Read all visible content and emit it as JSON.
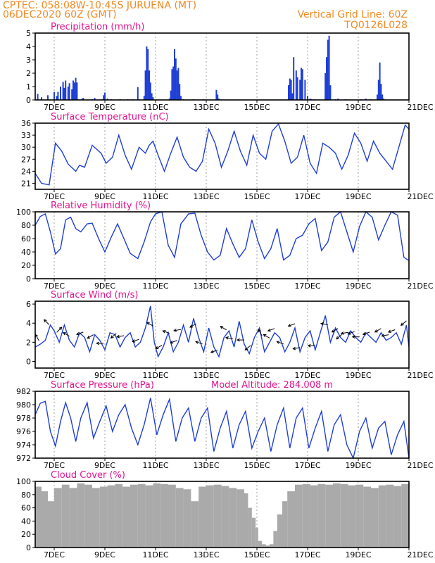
{
  "header": {
    "left_line1": "CPTEC:   058:08W-10:45S   JURUENA (MT)",
    "left_line2": "06DEC2020 60Z (GMT)",
    "right_line1": "Vertical Grid Line: 60Z",
    "right_line2": "TQ0126L028"
  },
  "colors": {
    "header": "#f08a24",
    "title": "#e0158f",
    "series": "#1f3fd6",
    "cloud": "#aaaaaa",
    "arrow": "#000000"
  },
  "x_axis": {
    "start_day": 6.25,
    "end_day": 21,
    "ticks": [
      {
        "day": 7,
        "label": "7DEC"
      },
      {
        "day": 9,
        "label": "9DEC"
      },
      {
        "day": 11,
        "label": "11DEC"
      },
      {
        "day": 13,
        "label": "13DEC"
      },
      {
        "day": 15,
        "label": "15DEC"
      },
      {
        "day": 17,
        "label": "17DEC"
      },
      {
        "day": 19,
        "label": "19DEC"
      },
      {
        "day": 21,
        "label": "21DEC"
      }
    ]
  },
  "chart_data": [
    {
      "type": "bar",
      "title": "Precipitation (mm/h)",
      "ylim": [
        0,
        5
      ],
      "yticks": [
        "0",
        "1",
        "2",
        "3",
        "4",
        "5"
      ],
      "x_units": "day of December 2020",
      "x": [
        6.35,
        6.5,
        6.75,
        7.0,
        7.1,
        7.15,
        7.25,
        7.35,
        7.4,
        7.45,
        7.55,
        7.6,
        7.7,
        7.75,
        7.8,
        7.85,
        7.9,
        8.1,
        8.15,
        8.5,
        8.6,
        8.9,
        8.95,
        9.0,
        9.1,
        9.25,
        9.6,
        9.9,
        10.1,
        10.3,
        10.55,
        10.6,
        10.65,
        10.7,
        10.75,
        10.8,
        10.85,
        10.9,
        11.55,
        11.6,
        11.65,
        11.7,
        11.75,
        11.8,
        11.85,
        11.9,
        11.95,
        12.0,
        12.1,
        12.5,
        12.9,
        13.4,
        13.45,
        13.5,
        16.25,
        16.3,
        16.35,
        16.4,
        16.45,
        16.55,
        16.6,
        16.7,
        16.75,
        16.8,
        16.9,
        17.0,
        17.1,
        17.15,
        17.3,
        17.7,
        17.75,
        17.8,
        17.85,
        17.9,
        18.1,
        18.2,
        18.5,
        19.1,
        19.3,
        19.5,
        19.75,
        19.8,
        19.85,
        19.9,
        19.95,
        20.0
      ],
      "values": [
        0.45,
        0.2,
        0.35,
        0.6,
        0.3,
        0.6,
        1.0,
        1.35,
        0.9,
        1.45,
        1.0,
        1.25,
        0.8,
        1.45,
        1.3,
        1.65,
        1.3,
        0.1,
        0.15,
        0.05,
        0.15,
        0.05,
        0.35,
        0.55,
        0.1,
        0.05,
        0.05,
        0.05,
        0.05,
        0.95,
        0.3,
        2.2,
        4.0,
        3.8,
        2.2,
        1.3,
        0.5,
        0.2,
        0.1,
        0.7,
        2.3,
        2.5,
        3.8,
        3.1,
        2.2,
        2.4,
        1.2,
        0.3,
        0.05,
        0.05,
        0.05,
        0.75,
        0.4,
        0.1,
        1.1,
        1.6,
        1.5,
        0.5,
        3.2,
        2.2,
        1.7,
        1.5,
        2.4,
        2.3,
        1.5,
        0.3,
        0.1,
        0.05,
        0.05,
        2.0,
        3.2,
        4.5,
        4.8,
        1.1,
        0.05,
        0.1,
        0.05,
        0.05,
        0.1,
        0.05,
        0.4,
        1.5,
        2.8,
        1.2,
        0.4,
        0.1
      ],
      "color": "#1f3fd6"
    },
    {
      "type": "line",
      "title": "Surface Temperature (nC)",
      "ylim": [
        19.5,
        36
      ],
      "yticks": [
        "21",
        "24",
        "27",
        "30",
        "33",
        "36"
      ],
      "x_units": "day of December 2020",
      "x": [
        6.25,
        6.5,
        6.8,
        7.05,
        7.3,
        7.55,
        7.85,
        8.0,
        8.2,
        8.5,
        8.85,
        9.05,
        9.3,
        9.55,
        9.8,
        10.05,
        10.35,
        10.6,
        10.75,
        10.9,
        11.1,
        11.35,
        11.6,
        11.85,
        12.1,
        12.35,
        12.6,
        12.85,
        13.1,
        13.35,
        13.6,
        13.85,
        14.1,
        14.35,
        14.6,
        14.85,
        15.1,
        15.35,
        15.6,
        15.85,
        16.1,
        16.35,
        16.6,
        16.85,
        17.1,
        17.35,
        17.6,
        17.85,
        18.1,
        18.35,
        18.6,
        18.85,
        19.1,
        19.35,
        19.6,
        19.85,
        20.1,
        20.35,
        20.6,
        20.85,
        21.0
      ],
      "values": [
        23.5,
        21.0,
        20.6,
        31.0,
        29.0,
        25.8,
        24.0,
        25.5,
        25.0,
        30.5,
        28.5,
        26.0,
        27.5,
        33.0,
        28.0,
        24.5,
        30.0,
        28.5,
        30.5,
        31.5,
        28.0,
        24.0,
        28.5,
        32.5,
        27.5,
        25.0,
        24.0,
        26.5,
        34.5,
        31.0,
        25.0,
        29.0,
        34.0,
        29.0,
        25.5,
        33.0,
        28.5,
        27.0,
        34.0,
        35.8,
        31.5,
        26.0,
        27.5,
        33.0,
        26.0,
        23.5,
        31.0,
        30.0,
        28.5,
        24.5,
        28.0,
        33.5,
        31.0,
        26.5,
        31.5,
        28.5,
        26.5,
        24.5,
        30.0,
        35.5,
        34.5
      ],
      "color": "#1f3fd6"
    },
    {
      "type": "line",
      "title": "Relative Humidity (%)",
      "ylim": [
        0,
        100
      ],
      "yticks": [
        "0",
        "20",
        "40",
        "60",
        "80",
        "100"
      ],
      "x_units": "day of December 2020",
      "x": [
        6.25,
        6.45,
        6.65,
        6.85,
        7.05,
        7.25,
        7.45,
        7.65,
        7.85,
        8.05,
        8.3,
        8.5,
        8.75,
        9.0,
        9.25,
        9.5,
        9.75,
        10.0,
        10.3,
        10.55,
        10.8,
        11.0,
        11.25,
        11.5,
        11.75,
        12.0,
        12.3,
        12.55,
        12.8,
        13.05,
        13.3,
        13.55,
        13.8,
        14.05,
        14.3,
        14.55,
        14.8,
        15.05,
        15.3,
        15.55,
        15.8,
        16.05,
        16.3,
        16.55,
        16.8,
        17.05,
        17.3,
        17.55,
        17.8,
        18.05,
        18.3,
        18.55,
        18.8,
        19.05,
        19.3,
        19.55,
        19.8,
        20.05,
        20.3,
        20.55,
        20.8,
        21.0
      ],
      "values": [
        80,
        93,
        97,
        70,
        37,
        45,
        88,
        92,
        75,
        70,
        82,
        83,
        60,
        40,
        62,
        82,
        60,
        38,
        30,
        55,
        85,
        97,
        100,
        50,
        32,
        82,
        97,
        98,
        65,
        40,
        28,
        35,
        75,
        52,
        32,
        45,
        88,
        55,
        30,
        45,
        75,
        28,
        35,
        60,
        65,
        82,
        90,
        42,
        55,
        92,
        100,
        70,
        40,
        78,
        100,
        92,
        58,
        80,
        100,
        95,
        32,
        27
      ],
      "color": "#1f3fd6"
    },
    {
      "type": "line",
      "title": "Surface Wind (m/s)",
      "ylim": [
        -0.7,
        6.3
      ],
      "yticks": [
        "0",
        "2",
        "4",
        "6"
      ],
      "x_units": "day of December 2020",
      "x": [
        6.25,
        6.45,
        6.65,
        6.85,
        7.0,
        7.2,
        7.4,
        7.6,
        7.8,
        8.0,
        8.2,
        8.4,
        8.6,
        8.8,
        9.0,
        9.2,
        9.4,
        9.6,
        9.8,
        10.0,
        10.2,
        10.4,
        10.6,
        10.8,
        10.95,
        11.1,
        11.3,
        11.5,
        11.7,
        11.9,
        12.1,
        12.3,
        12.5,
        12.7,
        12.9,
        13.1,
        13.3,
        13.5,
        13.7,
        13.9,
        14.1,
        14.3,
        14.5,
        14.7,
        14.9,
        15.1,
        15.3,
        15.5,
        15.7,
        15.9,
        16.1,
        16.3,
        16.5,
        16.7,
        16.9,
        17.1,
        17.3,
        17.5,
        17.7,
        17.9,
        18.1,
        18.3,
        18.5,
        18.7,
        18.9,
        19.1,
        19.3,
        19.5,
        19.7,
        19.9,
        20.1,
        20.3,
        20.5,
        20.7,
        20.9,
        21.0
      ],
      "values": [
        1.5,
        1.8,
        2.2,
        3.8,
        3.2,
        2.0,
        3.8,
        2.2,
        1.5,
        3.0,
        2.5,
        1.0,
        2.8,
        2.2,
        1.2,
        3.0,
        2.8,
        1.5,
        2.5,
        3.0,
        1.5,
        2.0,
        3.5,
        5.8,
        2.0,
        0.5,
        1.5,
        3.0,
        1.0,
        2.0,
        3.8,
        2.0,
        4.5,
        2.5,
        1.0,
        3.5,
        1.5,
        0.5,
        2.5,
        3.2,
        1.5,
        4.2,
        1.8,
        0.8,
        2.5,
        3.5,
        1.0,
        2.0,
        3.0,
        2.5,
        1.0,
        2.0,
        3.5,
        1.0,
        2.5,
        3.2,
        1.2,
        3.0,
        4.8,
        2.0,
        3.5,
        2.5,
        2.0,
        3.2,
        2.5,
        2.0,
        3.0,
        2.5,
        2.0,
        3.0,
        2.2,
        2.5,
        3.0,
        1.8,
        3.8,
        1.5
      ],
      "arrow_days": [
        6.4,
        6.8,
        7.1,
        7.6,
        8.15,
        8.55,
        8.95,
        9.45,
        9.75,
        10.35,
        10.9,
        11.25,
        11.55,
        11.85,
        12.0,
        12.6,
        12.85,
        13.45,
        13.8,
        14.05,
        14.5,
        14.75,
        15.2,
        15.5,
        15.7,
        16.05,
        16.5,
        16.7,
        17.3,
        17.8,
        18.2,
        18.35,
        18.6,
        18.85,
        19.05,
        19.45,
        19.9,
        20.2,
        20.45,
        20.9
      ],
      "arrow_angles_deg": [
        120,
        135,
        45,
        150,
        200,
        210,
        180,
        220,
        190,
        200,
        150,
        210,
        160,
        200,
        190,
        210,
        160,
        200,
        150,
        170,
        180,
        220,
        120,
        150,
        200,
        160,
        200,
        190,
        180,
        170,
        210,
        220,
        190,
        200,
        180,
        200,
        210,
        190,
        200,
        220
      ],
      "color": "#1f3fd6"
    },
    {
      "type": "line",
      "title": "Surface Pressure (hPa)",
      "annotation": "Model Altitude: 284.008 m",
      "ylim": [
        972,
        982
      ],
      "yticks": [
        "972",
        "974",
        "976",
        "978",
        "980",
        "982"
      ],
      "x_units": "day of December 2020",
      "x": [
        6.25,
        6.45,
        6.65,
        6.85,
        7.05,
        7.25,
        7.45,
        7.65,
        7.85,
        8.05,
        8.3,
        8.55,
        8.8,
        9.05,
        9.3,
        9.55,
        9.8,
        10.05,
        10.3,
        10.55,
        10.8,
        11.05,
        11.3,
        11.55,
        11.8,
        12.05,
        12.3,
        12.55,
        12.8,
        13.05,
        13.3,
        13.55,
        13.8,
        14.05,
        14.3,
        14.55,
        14.8,
        15.05,
        15.3,
        15.55,
        15.8,
        16.05,
        16.3,
        16.55,
        16.8,
        17.05,
        17.3,
        17.55,
        17.8,
        18.05,
        18.3,
        18.55,
        18.8,
        19.05,
        19.3,
        19.55,
        19.8,
        20.05,
        20.3,
        20.55,
        20.8,
        21.0
      ],
      "values": [
        978.5,
        980.2,
        980.5,
        976.0,
        973.8,
        977.5,
        980.3,
        978.0,
        974.5,
        978.0,
        980.3,
        975.0,
        977.5,
        979.8,
        976.0,
        978.5,
        980.0,
        976.5,
        974.0,
        977.0,
        981.0,
        975.5,
        978.5,
        980.8,
        974.5,
        978.0,
        979.5,
        974.5,
        978.0,
        979.5,
        973.0,
        976.5,
        979.0,
        973.5,
        977.0,
        979.0,
        973.5,
        976.0,
        978.0,
        973.0,
        977.0,
        979.5,
        973.5,
        978.0,
        979.5,
        973.5,
        976.5,
        979.0,
        973.0,
        977.0,
        978.5,
        974.0,
        972.0,
        976.0,
        978.0,
        973.5,
        976.5,
        977.5,
        972.5,
        975.5,
        977.5,
        972.0
      ],
      "color": "#1f3fd6"
    },
    {
      "type": "area",
      "title": "Cloud Cover (%)",
      "ylim": [
        0,
        100
      ],
      "yticks": [
        "0",
        "20",
        "40",
        "60",
        "80",
        "100"
      ],
      "x_units": "day of December 2020",
      "x": [
        6.25,
        6.5,
        6.75,
        7.0,
        7.3,
        7.6,
        7.9,
        8.2,
        8.5,
        8.8,
        9.1,
        9.4,
        9.7,
        10.0,
        10.3,
        10.6,
        10.9,
        11.2,
        11.5,
        11.8,
        12.1,
        12.4,
        12.7,
        13.0,
        13.3,
        13.6,
        13.9,
        14.2,
        14.5,
        14.65,
        14.8,
        14.95,
        15.05,
        15.2,
        15.35,
        15.5,
        15.65,
        15.8,
        16.0,
        16.2,
        16.5,
        16.8,
        17.1,
        17.4,
        17.7,
        18.0,
        18.3,
        18.6,
        18.9,
        19.2,
        19.5,
        19.8,
        20.1,
        20.4,
        20.7,
        21.0
      ],
      "values": [
        92,
        85,
        70,
        90,
        95,
        90,
        97,
        95,
        90,
        92,
        94,
        96,
        92,
        95,
        96,
        94,
        97,
        96,
        95,
        90,
        88,
        70,
        92,
        94,
        95,
        93,
        90,
        88,
        82,
        60,
        45,
        30,
        10,
        5,
        3,
        5,
        25,
        50,
        70,
        85,
        95,
        96,
        94,
        96,
        95,
        97,
        96,
        94,
        95,
        92,
        90,
        94,
        95,
        93,
        96,
        95
      ],
      "color": "#aaaaaa"
    }
  ]
}
